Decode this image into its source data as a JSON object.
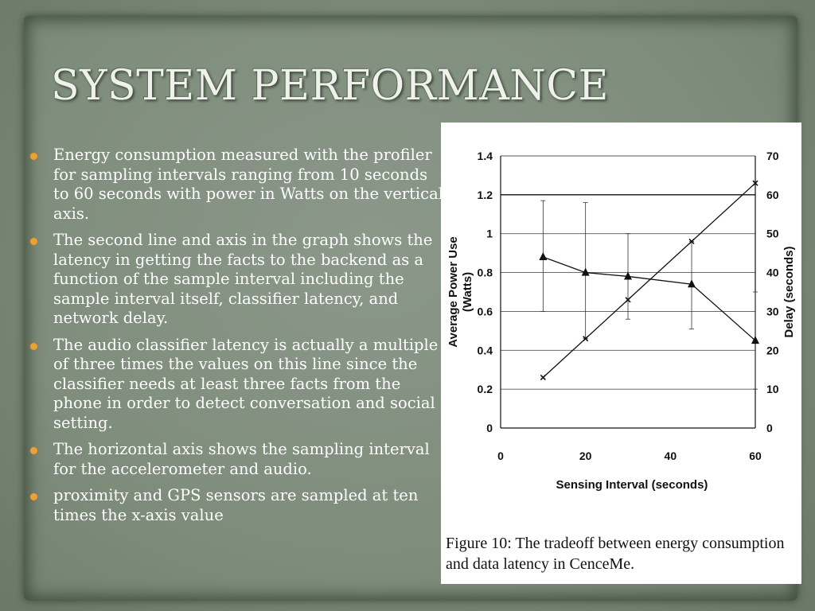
{
  "slide": {
    "title": "SYSTEM PERFORMANCE",
    "bullets": [
      "Energy consumption measured with the profiler for sampling intervals ranging from 10 seconds to 60 seconds with power in Watts on the vertical axis.",
      "The second line and axis in the graph shows the latency in getting the facts to the backend as a function of the sample interval including the sample interval itself, classifier latency, and network delay.",
      "The audio classifier latency is actually a multiple of three times the values on this line since the classifier needs at least three facts from the phone in order to detect conversation and social setting.",
      "The horizontal axis shows the sampling interval for the accelerometer and audio.",
      "proximity and GPS sensors are sampled at ten times the x-axis value"
    ],
    "caption": "Figure 10: The tradeoff between energy consumption and data latency in CenceMe.",
    "colors": {
      "bullet": "#e8a23a",
      "text": "#ffffff",
      "background": "#7f8d7c"
    }
  },
  "chart_data": {
    "type": "line",
    "xlabel": "Sensing Interval (seconds)",
    "ylabel": "Average Power Use (Watts)",
    "y2label": "Delay (seconds)",
    "xlim": [
      0,
      60
    ],
    "ylim": [
      0,
      1.4
    ],
    "y2lim": [
      0,
      70
    ],
    "xticks": [
      "0",
      "20",
      "40",
      "60"
    ],
    "yticks": [
      "0",
      "0.2",
      "0.4",
      "0.6",
      "0.8",
      "1",
      "1.2",
      "1.4"
    ],
    "y2ticks": [
      "0",
      "10",
      "20",
      "30",
      "40",
      "50",
      "60",
      "70"
    ],
    "grid": true,
    "series": [
      {
        "axis": "left",
        "marker": "triangle",
        "x": [
          10,
          20,
          30,
          45,
          60
        ],
        "values": [
          0.88,
          0.8,
          0.78,
          0.74,
          0.45
        ],
        "err_low": [
          0.6,
          0.46,
          0.56,
          0.51,
          0.2
        ],
        "err_high": [
          1.17,
          1.16,
          1.0,
          0.96,
          0.7
        ]
      },
      {
        "axis": "right",
        "marker": "x",
        "x": [
          10,
          20,
          30,
          45,
          60
        ],
        "values": [
          13,
          23,
          33,
          48,
          63
        ]
      }
    ]
  }
}
